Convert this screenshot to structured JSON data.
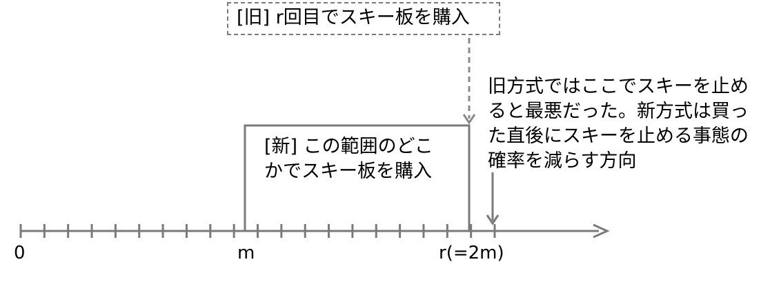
{
  "old_box": {
    "label": "[旧] r回目でスキー板を購入"
  },
  "new_box": {
    "label": "[新] この範囲のどこかでスキー板を購入"
  },
  "note": {
    "text": "旧方式ではここでスキーを止めると最悪だった。新方式は買った直後にスキーを止める事態の確率を減らす方向"
  },
  "axis": {
    "labels": {
      "zero": "0",
      "m": "m",
      "r": "r(=2m)"
    },
    "tick_count": 20
  },
  "colors": {
    "line": "#7a7a7a",
    "text": "#000000",
    "dashed": "#8a8a8a"
  }
}
